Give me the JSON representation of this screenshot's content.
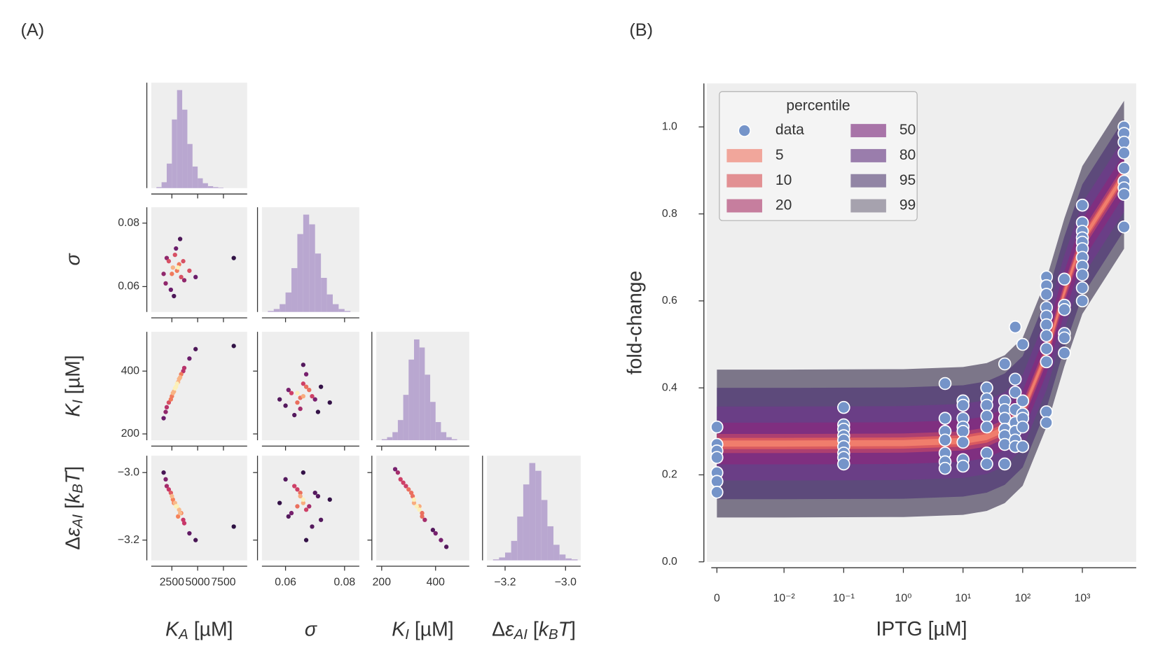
{
  "chart_data": [
    {
      "type": "corner",
      "panel_label": "(A)",
      "hist_color": "#b9a7d0",
      "colormap": "magma",
      "parameters": [
        {
          "label": [
            {
              "text": "K",
              "italic": true
            },
            {
              "text": "A",
              "italic": true,
              "sub": true
            },
            {
              "text": " [µM]"
            }
          ],
          "lim": [
            500,
            9800
          ],
          "ticks": [
            2500,
            5000,
            7500
          ],
          "hist": {
            "bins": [
              1000,
              1500,
              2000,
              2500,
              3000,
              3500,
              4000,
              4500,
              5000,
              5500,
              6000,
              6500,
              7000,
              7500
            ],
            "counts": [
              1,
              6,
              25,
              70,
              100,
              80,
              45,
              22,
              10,
              5,
              2,
              1,
              0.5
            ]
          }
        },
        {
          "label": [
            {
              "text": "σ",
              "italic": true
            }
          ],
          "lim": [
            0.052,
            0.085
          ],
          "ticks": [
            0.06,
            0.08
          ],
          "hist": {
            "bins": [
              0.054,
              0.056,
              0.058,
              0.06,
              0.062,
              0.064,
              0.066,
              0.068,
              0.07,
              0.072,
              0.074,
              0.076,
              0.078,
              0.08,
              0.082
            ],
            "counts": [
              1,
              3,
              8,
              20,
              45,
              80,
              100,
              90,
              60,
              35,
              18,
              8,
              3,
              1
            ]
          }
        },
        {
          "label": [
            {
              "text": "K",
              "italic": true
            },
            {
              "text": "I",
              "italic": true,
              "sub": true
            },
            {
              "text": " [µM]"
            }
          ],
          "lim": [
            180,
            525
          ],
          "ticks": [
            200,
            400
          ],
          "hist": {
            "bins": [
              200,
              220,
              240,
              260,
              280,
              300,
              320,
              340,
              360,
              380,
              400,
              420,
              440,
              460,
              480
            ],
            "counts": [
              1,
              3,
              8,
              20,
              45,
              80,
              100,
              92,
              65,
              38,
              18,
              8,
              3,
              1
            ]
          }
        },
        {
          "label": [
            {
              "text": "Δ"
            },
            {
              "text": "ε",
              "italic": true
            },
            {
              "text": "AI",
              "italic": true,
              "sub": true
            },
            {
              "text": " ["
            },
            {
              "text": "k",
              "italic": true
            },
            {
              "text": "B",
              "italic": true,
              "sub": true
            },
            {
              "text": "T",
              "italic": true
            },
            {
              "text": "]"
            }
          ],
          "lim": [
            -3.26,
            -2.95
          ],
          "ticks": [
            {
              "value": -3.2,
              "label": "−3.2"
            },
            {
              "value": -3.0,
              "label": "−3.0"
            }
          ],
          "hist": {
            "bins": [
              -3.24,
              -3.22,
              -3.2,
              -3.18,
              -3.16,
              -3.14,
              -3.12,
              -3.1,
              -3.08,
              -3.06,
              -3.04,
              -3.02,
              -3.0,
              -2.98,
              -2.96
            ],
            "counts": [
              1,
              3,
              8,
              20,
              45,
              78,
              100,
              92,
              62,
              35,
              16,
              6,
              2,
              1
            ]
          }
        }
      ],
      "scatter_rows": [
        [
          {
            "x": [
              2600,
              3000,
              2200,
              3400,
              2800,
              1900,
              3200,
              2500,
              3700,
              2900,
              2400,
              3100,
              4200,
              2000,
              2700,
              3300,
              1700,
              3600,
              4800,
              8500
            ],
            "values": [
              0.066,
              0.065,
              0.068,
              0.063,
              0.07,
              0.061,
              0.067,
              0.064,
              0.062,
              0.072,
              0.059,
              0.066,
              0.065,
              0.069,
              0.057,
              0.075,
              0.064,
              0.068,
              0.063,
              0.069
            ]
          }
        ],
        [
          {
            "x": [
              2600,
              3000,
              2200,
              3400,
              2800,
              1900,
              3200,
              2500,
              3700,
              2900,
              2400,
              3100,
              4200,
              2000,
              2700,
              3300,
              1700,
              3600,
              4800,
              8500
            ],
            "values": [
              330,
              360,
              300,
              390,
              345,
              270,
              375,
              320,
              410,
              350,
              310,
              365,
              440,
              285,
              335,
              380,
              250,
              400,
              470,
              480
            ]
          },
          {
            "x": [
              0.066,
              0.064,
              0.068,
              0.062,
              0.07,
              0.066,
              0.06,
              0.072,
              0.065,
              0.067,
              0.063,
              0.069,
              0.058,
              0.075,
              0.066,
              0.061,
              0.071,
              0.064,
              0.067,
              0.065
            ],
            "values": [
              320,
              300,
              340,
              330,
              310,
              360,
              290,
              350,
              280,
              390,
              260,
              320,
              310,
              300,
              420,
              340,
              270,
              330,
              350,
              315
            ]
          }
        ],
        [
          {
            "x": [
              2600,
              3000,
              2200,
              3400,
              2800,
              1900,
              3200,
              2500,
              3700,
              2900,
              2400,
              3100,
              4200,
              2000,
              2700,
              3300,
              1700,
              3600,
              4800,
              8500
            ],
            "values": [
              -3.08,
              -3.1,
              -3.05,
              -3.12,
              -3.09,
              -3.02,
              -3.11,
              -3.07,
              -3.15,
              -3.1,
              -3.06,
              -3.13,
              -3.18,
              -3.04,
              -3.09,
              -3.12,
              -3.0,
              -3.14,
              -3.2,
              -3.16
            ]
          },
          {
            "x": [
              0.066,
              0.064,
              0.068,
              0.062,
              0.07,
              0.066,
              0.06,
              0.072,
              0.065,
              0.067,
              0.063,
              0.069,
              0.058,
              0.075,
              0.066,
              0.061,
              0.071,
              0.064,
              0.067,
              0.065
            ],
            "values": [
              -3.08,
              -3.05,
              -3.1,
              -3.12,
              -3.06,
              -3.09,
              -3.02,
              -3.14,
              -3.07,
              -3.11,
              -3.04,
              -3.16,
              -3.09,
              -3.08,
              -3.0,
              -3.13,
              -3.07,
              -3.1,
              -3.2,
              -3.06
            ]
          },
          {
            "x": [
              320,
              300,
              340,
              330,
              310,
              360,
              290,
              350,
              280,
              390,
              260,
              320,
              400,
              250,
              420,
              340,
              270,
              440,
              350,
              315
            ],
            "values": [
              -3.08,
              -3.05,
              -3.11,
              -3.1,
              -3.06,
              -3.14,
              -3.04,
              -3.12,
              -3.03,
              -3.17,
              -3.0,
              -3.09,
              -3.18,
              -2.99,
              -3.2,
              -3.1,
              -3.02,
              -3.22,
              -3.13,
              -3.07
            ]
          }
        ]
      ]
    },
    {
      "type": "percentile_band",
      "panel_label": "(B)",
      "xlabel": "IPTG [µM]",
      "ylabel": "fold-change",
      "xscale": "symlog",
      "linthresh": 0.01,
      "grid": false,
      "legend": "upper left",
      "legend_title": "percentile",
      "xlim": [
        -0.0015,
        8000
      ],
      "ylim": [
        0,
        1.1
      ],
      "xticks": [
        0,
        {
          "value": 0.01,
          "label": "10⁻²"
        },
        {
          "value": 0.1,
          "label": "10⁻¹"
        },
        {
          "value": 1,
          "label": "10⁰"
        },
        {
          "value": 10,
          "label": "10¹"
        },
        {
          "value": 100,
          "label": "10²"
        },
        {
          "value": 1000,
          "label": "10³"
        }
      ],
      "yticks": [
        {
          "value": 0,
          "label": "0.0"
        },
        0.2,
        0.4,
        0.6,
        0.8,
        {
          "value": 1,
          "label": "1.0"
        }
      ],
      "x": [
        0,
        0.01,
        1,
        10,
        25,
        50,
        100,
        250,
        500,
        1000,
        5000
      ],
      "series": [
        {
          "name": "data",
          "color": "#7594c9",
          "x": [
            0,
            0,
            0,
            0,
            0,
            0,
            0,
            0.1,
            0.1,
            0.1,
            0.1,
            0.1,
            0.1,
            0.1,
            0.1,
            0.1,
            5,
            5,
            5,
            5,
            5,
            5,
            5,
            10,
            10,
            10,
            10,
            10,
            10,
            10,
            10,
            25,
            25,
            25,
            25,
            25,
            25,
            25,
            50,
            50,
            50,
            50,
            50,
            50,
            50,
            50,
            75,
            75,
            75,
            75,
            75,
            75,
            75,
            75,
            100,
            100,
            100,
            100,
            100,
            100,
            250,
            250,
            250,
            250,
            250,
            250,
            250,
            250,
            250,
            250,
            250,
            500,
            500,
            500,
            500,
            500,
            500,
            1000,
            1000,
            1000,
            1000,
            1000,
            1000,
            1000,
            1000,
            1000,
            1000,
            1000,
            5000,
            5000,
            5000,
            5000,
            5000,
            5000,
            5000,
            5000,
            5000
          ],
          "values": [
            0.31,
            0.27,
            0.255,
            0.24,
            0.205,
            0.185,
            0.16,
            0.355,
            0.315,
            0.305,
            0.29,
            0.28,
            0.265,
            0.25,
            0.24,
            0.225,
            0.41,
            0.33,
            0.3,
            0.28,
            0.25,
            0.23,
            0.215,
            0.37,
            0.36,
            0.33,
            0.31,
            0.3,
            0.275,
            0.235,
            0.22,
            0.4,
            0.375,
            0.36,
            0.335,
            0.31,
            0.25,
            0.225,
            0.455,
            0.37,
            0.35,
            0.33,
            0.305,
            0.29,
            0.27,
            0.225,
            0.54,
            0.42,
            0.39,
            0.35,
            0.32,
            0.3,
            0.28,
            0.265,
            0.5,
            0.37,
            0.34,
            0.33,
            0.31,
            0.265,
            0.655,
            0.635,
            0.615,
            0.585,
            0.565,
            0.545,
            0.52,
            0.49,
            0.46,
            0.345,
            0.32,
            0.65,
            0.59,
            0.58,
            0.525,
            0.515,
            0.48,
            0.82,
            0.78,
            0.76,
            0.745,
            0.735,
            0.72,
            0.7,
            0.68,
            0.66,
            0.63,
            0.6,
            1.0,
            0.985,
            0.965,
            0.94,
            0.905,
            0.875,
            0.86,
            0.845,
            0.77
          ]
        },
        {
          "name": "5",
          "color": "#f07d6c",
          "lower": [
            0.265,
            0.265,
            0.266,
            0.271,
            0.28,
            0.298,
            0.338,
            0.473,
            0.613,
            0.733,
            0.883
          ],
          "upper": [
            0.279,
            0.279,
            0.28,
            0.285,
            0.294,
            0.312,
            0.352,
            0.487,
            0.627,
            0.747,
            0.897
          ]
        },
        {
          "name": "10",
          "color": "#d95a60",
          "lower": [
            0.259,
            0.259,
            0.26,
            0.265,
            0.274,
            0.292,
            0.332,
            0.467,
            0.607,
            0.727,
            0.877
          ],
          "upper": [
            0.285,
            0.285,
            0.286,
            0.291,
            0.3,
            0.318,
            0.358,
            0.493,
            0.633,
            0.753,
            0.903
          ]
        },
        {
          "name": "20",
          "color": "#ad3f70",
          "lower": [
            0.25,
            0.25,
            0.251,
            0.256,
            0.265,
            0.283,
            0.323,
            0.458,
            0.598,
            0.718,
            0.868
          ],
          "upper": [
            0.294,
            0.294,
            0.295,
            0.3,
            0.309,
            0.327,
            0.367,
            0.502,
            0.642,
            0.762,
            0.912
          ]
        },
        {
          "name": "50",
          "color": "#7f2f80",
          "lower": [
            0.224,
            0.224,
            0.225,
            0.23,
            0.239,
            0.257,
            0.297,
            0.432,
            0.572,
            0.692,
            0.842
          ],
          "upper": [
            0.32,
            0.32,
            0.321,
            0.326,
            0.335,
            0.353,
            0.393,
            0.528,
            0.668,
            0.788,
            0.938
          ]
        },
        {
          "name": "80",
          "color": "#6a3e86",
          "lower": [
            0.187,
            0.187,
            0.188,
            0.193,
            0.202,
            0.22,
            0.26,
            0.395,
            0.535,
            0.655,
            0.805
          ],
          "upper": [
            0.357,
            0.357,
            0.358,
            0.363,
            0.372,
            0.39,
            0.43,
            0.565,
            0.705,
            0.825,
            0.975
          ]
        },
        {
          "name": "95",
          "color": "#5d4a7b",
          "lower": [
            0.144,
            0.144,
            0.145,
            0.15,
            0.159,
            0.177,
            0.217,
            0.352,
            0.492,
            0.612,
            0.762
          ],
          "upper": [
            0.4,
            0.4,
            0.401,
            0.406,
            0.415,
            0.433,
            0.473,
            0.608,
            0.748,
            0.868,
            1.018
          ]
        },
        {
          "name": "99",
          "color": "#7c7689",
          "lower": [
            0.102,
            0.102,
            0.103,
            0.108,
            0.117,
            0.135,
            0.175,
            0.31,
            0.45,
            0.57,
            0.72
          ],
          "upper": [
            0.442,
            0.442,
            0.443,
            0.448,
            0.457,
            0.475,
            0.515,
            0.65,
            0.79,
            0.91,
            1.06
          ]
        }
      ]
    }
  ]
}
